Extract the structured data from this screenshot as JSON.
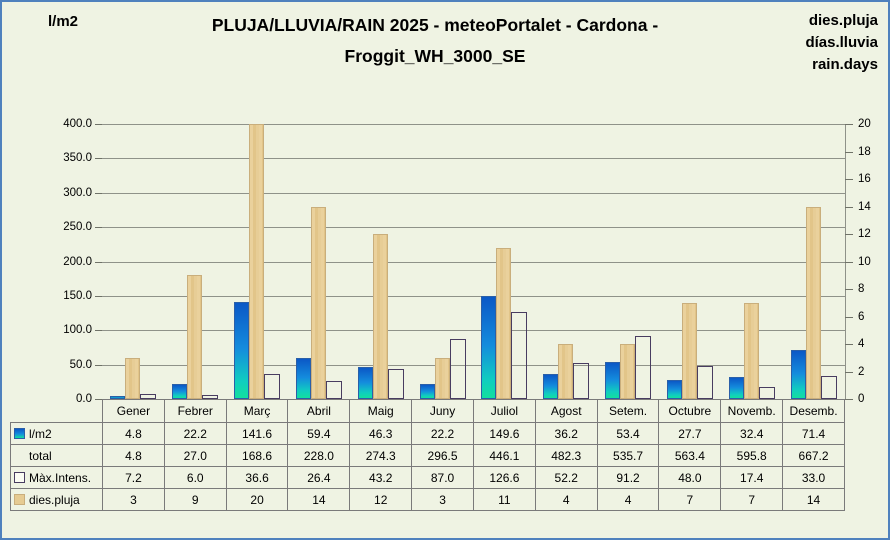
{
  "header": {
    "left_axis_title": "l/m2",
    "title_line1": "PLUJA/LLUVIA/RAIN 2025 - meteoPortalet - Cardona -",
    "title_line2": "Froggit_WH_3000_SE",
    "right_legend": [
      "dies.pluja",
      "días.lluvia",
      "rain.days"
    ]
  },
  "colors": {
    "page_background": "#eff3e3",
    "outer_border": "#4f81bd",
    "gridline": "#8f9289",
    "bar_blue_top": "#0b58c6",
    "bar_blue_bottom": "#12e09e",
    "bar_blue_border": "#2a5fa8",
    "bar_tan": "#e6cb92",
    "bar_tan_border": "#c9ae7c",
    "bar_outline_border": "#483c60",
    "table_border": "#7a7a7a"
  },
  "chart_data": {
    "type": "bar",
    "title": "PLUJA/LLUVIA/RAIN 2025 - meteoPortalet - Cardona - Froggit_WH_3000_SE",
    "categories": [
      "Gener",
      "Febrer",
      "Març",
      "Abril",
      "Maig",
      "Juny",
      "Juliol",
      "Agost",
      "Setem.",
      "Octubre",
      "Novemb.",
      "Desemb."
    ],
    "series": [
      {
        "name": "l/m2",
        "axis": "left",
        "style": "blue-gradient",
        "values": [
          4.8,
          22.2,
          141.6,
          59.4,
          46.3,
          22.2,
          149.6,
          36.2,
          53.4,
          27.7,
          32.4,
          71.4
        ]
      },
      {
        "name": "dies.pluja",
        "axis": "right",
        "style": "tan",
        "values": [
          3,
          9,
          20,
          14,
          12,
          3,
          11,
          4,
          4,
          7,
          7,
          14
        ]
      },
      {
        "name": "Màx.Intens.",
        "axis": "left",
        "style": "outline",
        "values": [
          7.2,
          6.0,
          36.6,
          26.4,
          43.2,
          87.0,
          126.6,
          52.2,
          91.2,
          48.0,
          17.4,
          33.0
        ]
      }
    ],
    "left_axis": {
      "min": 0,
      "max": 400,
      "step": 50,
      "labels": [
        "400.0",
        "350.0",
        "300.0",
        "250.0",
        "200.0",
        "150.0",
        "100.0",
        "50.0",
        "0.0"
      ]
    },
    "right_axis": {
      "min": 0,
      "max": 20,
      "step": 2,
      "labels": [
        "20",
        "18",
        "16",
        "14",
        "12",
        "10",
        "8",
        "6",
        "4",
        "2",
        "0"
      ]
    },
    "grid": true,
    "legend_position": "top-right"
  },
  "table": {
    "columns": [
      "Gener",
      "Febrer",
      "Març",
      "Abril",
      "Maig",
      "Juny",
      "Juliol",
      "Agost",
      "Setem.",
      "Octubre",
      "Novemb.",
      "Desemb."
    ],
    "rows": [
      {
        "label": "l/m2",
        "swatch": "blue",
        "values": [
          "4.8",
          "22.2",
          "141.6",
          "59.4",
          "46.3",
          "22.2",
          "149.6",
          "36.2",
          "53.4",
          "27.7",
          "32.4",
          "71.4"
        ]
      },
      {
        "label": "total",
        "swatch": "none",
        "values": [
          "4.8",
          "27.0",
          "168.6",
          "228.0",
          "274.3",
          "296.5",
          "446.1",
          "482.3",
          "535.7",
          "563.4",
          "595.8",
          "667.2"
        ]
      },
      {
        "label": "Màx.Intens.",
        "swatch": "outline",
        "values": [
          "7.2",
          "6.0",
          "36.6",
          "26.4",
          "43.2",
          "87.0",
          "126.6",
          "52.2",
          "91.2",
          "48.0",
          "17.4",
          "33.0"
        ]
      },
      {
        "label": "dies.pluja",
        "swatch": "tan",
        "values": [
          "3",
          "9",
          "20",
          "14",
          "12",
          "3",
          "11",
          "4",
          "4",
          "7",
          "7",
          "14"
        ]
      }
    ]
  }
}
